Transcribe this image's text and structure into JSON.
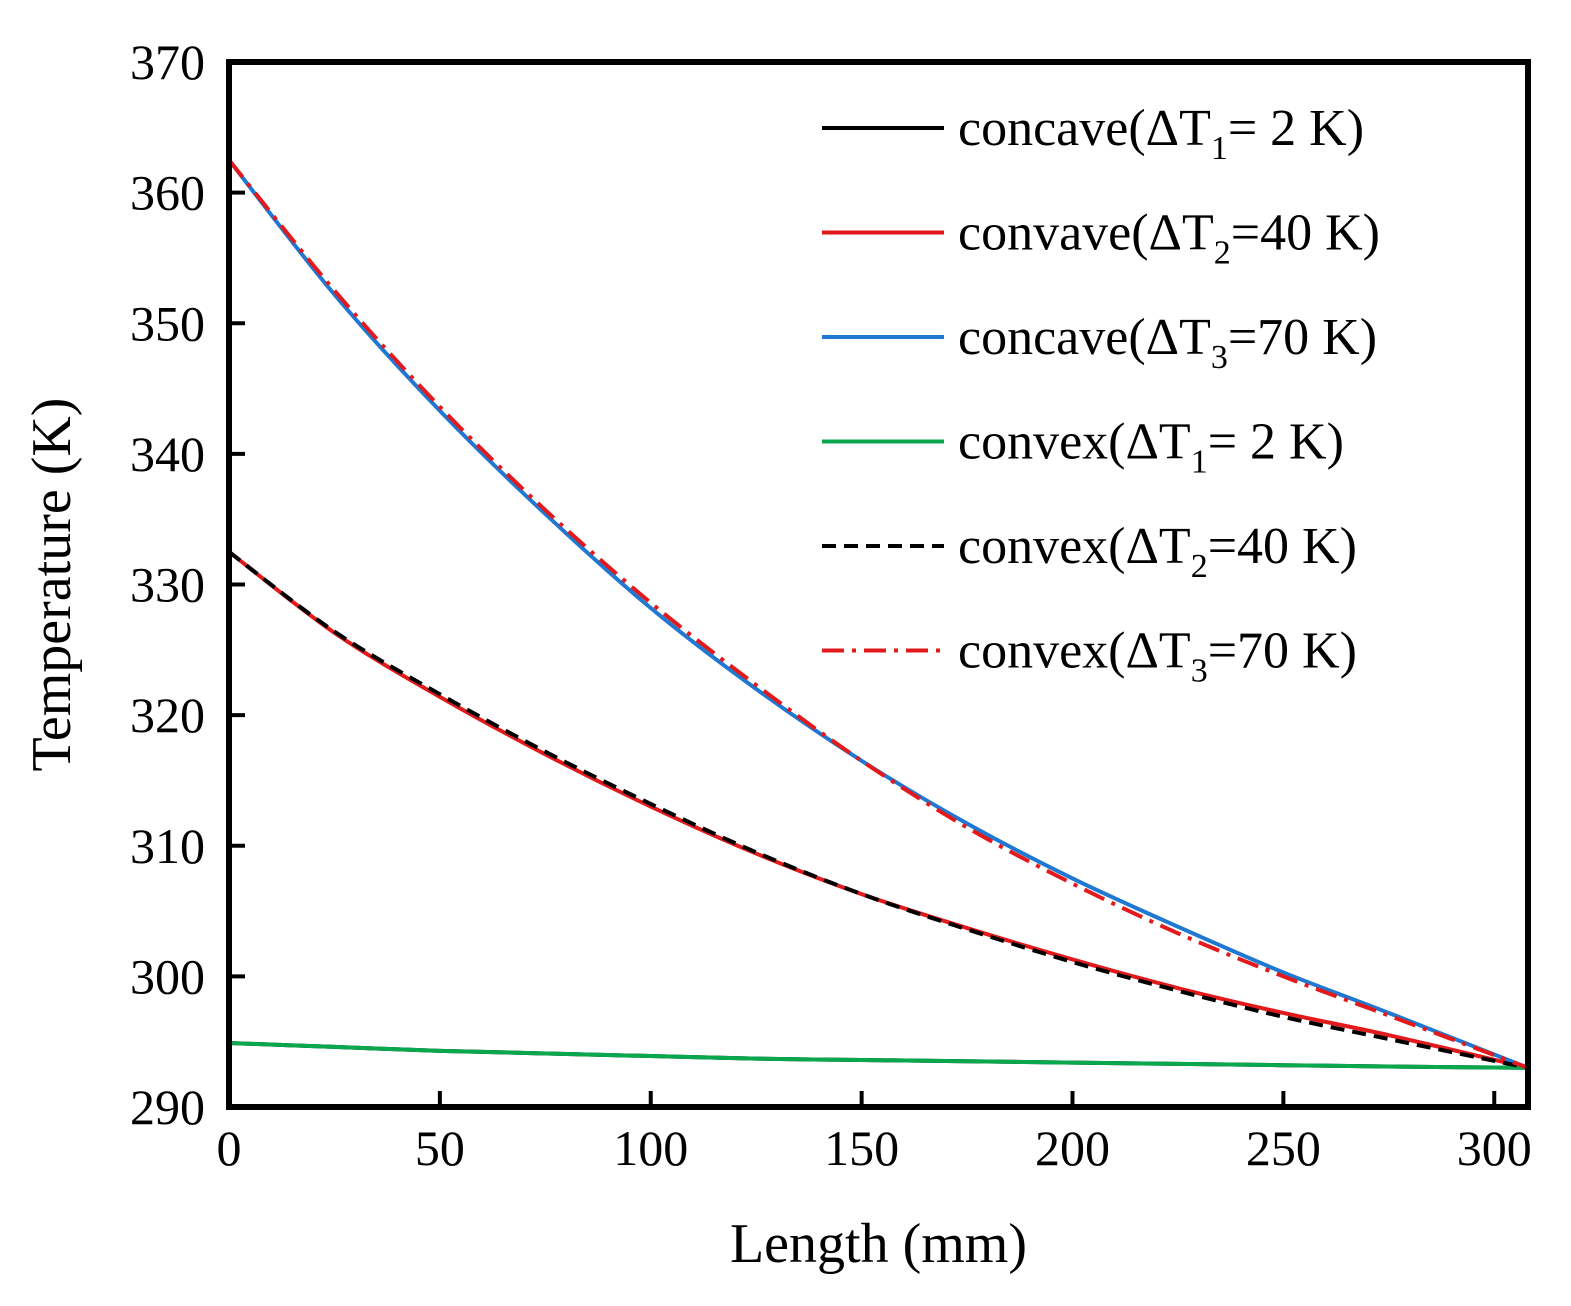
{
  "chart_data": {
    "type": "line",
    "title": "",
    "xlabel": "Length (mm)",
    "ylabel": "Temperature (K)",
    "xlim": [
      0,
      308
    ],
    "ylim": [
      290,
      370
    ],
    "xticks": [
      0,
      50,
      100,
      150,
      200,
      250,
      300
    ],
    "yticks": [
      290,
      300,
      310,
      320,
      330,
      340,
      350,
      360,
      370
    ],
    "grid": false,
    "legend_position": "top-right",
    "x": [
      0,
      25,
      50,
      75,
      100,
      125,
      150,
      175,
      200,
      225,
      250,
      275,
      308
    ],
    "series": [
      {
        "name": "concave(ΔT1= 2 K)",
        "label_prefix": "concave(ΔT",
        "label_sub": "1",
        "label_suffix": "=  2 K)",
        "color": "#000000",
        "dash": "solid",
        "values": [
          294.9,
          294.6,
          294.3,
          294.1,
          293.9,
          293.7,
          293.6,
          293.5,
          293.4,
          293.3,
          293.2,
          293.1,
          293.0
        ]
      },
      {
        "name": "convave(ΔT2=40 K)",
        "label_prefix": "convave(ΔT",
        "label_sub": "2",
        "label_suffix": "=40 K)",
        "color": "#e31a1c",
        "dash": "solid",
        "values": [
          332.5,
          326.3,
          321.4,
          317.0,
          313.0,
          309.4,
          306.3,
          303.7,
          301.3,
          299.1,
          297.2,
          295.5,
          293.0
        ]
      },
      {
        "name": "concave(ΔT3=70 K)",
        "label_prefix": "concave(ΔT",
        "label_sub": "3",
        "label_suffix": "=70 K)",
        "color": "#1f78d1",
        "dash": "solid",
        "values": [
          362.5,
          352.2,
          343.3,
          335.4,
          328.2,
          322.0,
          316.5,
          311.7,
          307.5,
          303.8,
          300.3,
          297.2,
          293.0
        ]
      },
      {
        "name": "convex(ΔT1= 2 K)",
        "label_prefix": "convex(ΔT",
        "label_sub": "1",
        "label_suffix": "=  2 K)",
        "color": "#0aa84e",
        "dash": "solid",
        "values": [
          294.9,
          294.6,
          294.3,
          294.1,
          293.9,
          293.7,
          293.6,
          293.5,
          293.4,
          293.3,
          293.2,
          293.1,
          293.0
        ]
      },
      {
        "name": "convex(ΔT2=40 K)",
        "label_prefix": "convex(ΔT",
        "label_sub": "2",
        "label_suffix": "=40 K)",
        "color": "#000000",
        "dash": "dashed",
        "values": [
          332.5,
          326.4,
          321.6,
          317.2,
          313.2,
          309.5,
          306.3,
          303.6,
          301.1,
          298.9,
          296.9,
          295.2,
          293.0
        ]
      },
      {
        "name": "convex(ΔT3=70 K)",
        "label_prefix": "convex(ΔT",
        "label_sub": "3",
        "label_suffix": "=70 K)",
        "color": "#e31a1c",
        "dash": "dashdot",
        "values": [
          362.5,
          352.5,
          343.6,
          335.7,
          328.6,
          322.3,
          316.5,
          311.4,
          307.1,
          303.3,
          300.0,
          297.0,
          293.0
        ]
      }
    ]
  }
}
